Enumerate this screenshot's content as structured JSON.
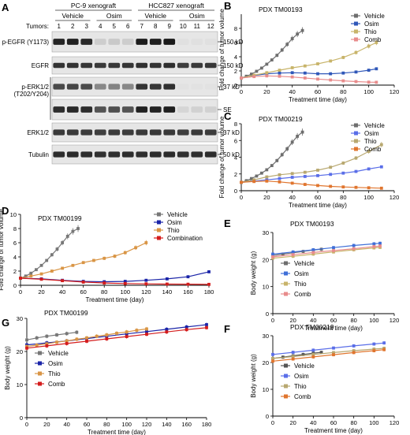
{
  "figure": {
    "blot": {
      "panel_letter": "A",
      "tumors_label": "Tumors:",
      "group_headers": [
        "PC-9 xenograft",
        "HCC827 xenograft"
      ],
      "treatments": [
        "Vehicle",
        "Osim",
        "Vehicle",
        "Osim"
      ],
      "lanes": [
        "1",
        "2",
        "3",
        "4",
        "5",
        "6",
        "7",
        "8",
        "9",
        "10",
        "11",
        "12"
      ],
      "rows": [
        {
          "label": "p-EGFR (Y1173)",
          "kd": "150 kD",
          "lane_intensity": [
            0.92,
            0.94,
            0.9,
            0.12,
            0.14,
            0.12,
            0.96,
            0.95,
            0.97,
            0.03,
            0.03,
            0.03
          ]
        },
        {
          "label": "EGFR",
          "kd": "150 kD",
          "lane_intensity": [
            0.85,
            0.85,
            0.84,
            0.82,
            0.83,
            0.84,
            0.86,
            0.85,
            0.87,
            0.8,
            0.82,
            0.83
          ]
        },
        {
          "label": "p-ERK1/2",
          "kd": "37 kD",
          "lane_intensity": [
            0.75,
            0.76,
            0.74,
            0.45,
            0.47,
            0.45,
            0.85,
            0.84,
            0.86,
            0.02,
            0.02,
            0.02
          ]
        },
        {
          "label": "",
          "kd": "SE",
          "lane_intensity": [
            0.88,
            0.9,
            0.88,
            0.7,
            0.72,
            0.7,
            0.94,
            0.93,
            0.95,
            0.08,
            0.1,
            0.1
          ]
        },
        {
          "label": "ERK1/2",
          "kd": "37 kD",
          "lane_intensity": [
            0.82,
            0.82,
            0.81,
            0.8,
            0.82,
            0.81,
            0.82,
            0.83,
            0.83,
            0.8,
            0.82,
            0.81
          ]
        },
        {
          "label": "Tubulin",
          "kd": "50 kD",
          "lane_intensity": [
            0.88,
            0.89,
            0.88,
            0.86,
            0.87,
            0.88,
            0.87,
            0.88,
            0.89,
            0.86,
            0.87,
            0.88
          ]
        }
      ],
      "side_label": "(T202/Y204)"
    }
  },
  "chart_data": [
    {
      "type": "line",
      "panel": "B",
      "title": "PDX TM00193",
      "xlabel": "Treatment time (day)",
      "ylabel": "Fold change of tumor volume",
      "xlim": [
        0,
        120
      ],
      "ylim": [
        0,
        10
      ],
      "xticks": [
        0,
        20,
        40,
        60,
        80,
        100,
        120
      ],
      "yticks": [
        0,
        2,
        4,
        6,
        8
      ],
      "legend": "top-right",
      "series": [
        {
          "name": "Vehicle",
          "color": "#6e6e6e",
          "x": [
            0,
            4,
            8,
            12,
            16,
            20,
            24,
            28,
            32,
            36,
            40,
            44,
            48
          ],
          "y": [
            1,
            1.25,
            1.55,
            1.95,
            2.4,
            2.95,
            3.55,
            4.2,
            4.95,
            5.75,
            6.55,
            7.2,
            7.7
          ]
        },
        {
          "name": "Osim",
          "color": "#2f57b8",
          "x": [
            0,
            10,
            20,
            30,
            40,
            50,
            60,
            70,
            80,
            90,
            100,
            106
          ],
          "y": [
            1,
            1.35,
            1.6,
            1.7,
            1.75,
            1.7,
            1.6,
            1.6,
            1.7,
            1.85,
            2.1,
            2.3
          ]
        },
        {
          "name": "Thio",
          "color": "#c8b46a",
          "x": [
            0,
            10,
            20,
            30,
            40,
            50,
            60,
            70,
            80,
            90,
            100,
            106
          ],
          "y": [
            1,
            1.4,
            1.75,
            2.1,
            2.45,
            2.7,
            3.0,
            3.4,
            3.9,
            4.6,
            5.5,
            6.0
          ]
        },
        {
          "name": "Comb",
          "color": "#e88c8c",
          "x": [
            0,
            10,
            20,
            30,
            40,
            50,
            60,
            70,
            80,
            90,
            100,
            106
          ],
          "y": [
            1,
            1.2,
            1.3,
            1.25,
            1.15,
            1.0,
            0.85,
            0.72,
            0.6,
            0.5,
            0.42,
            0.4
          ]
        }
      ]
    },
    {
      "type": "line",
      "panel": "C",
      "title": "PDX TM00219",
      "xlabel": "Treatment time (day)",
      "ylabel": "Fold change of tumor volume",
      "xlim": [
        0,
        120
      ],
      "ylim": [
        0,
        8
      ],
      "xticks": [
        0,
        20,
        40,
        60,
        80,
        100,
        120
      ],
      "yticks": [
        0,
        2,
        4,
        6,
        8
      ],
      "legend": "top-right",
      "series": [
        {
          "name": "Vehicle",
          "color": "#6e6e6e",
          "x": [
            0,
            4,
            8,
            12,
            16,
            20,
            24,
            28,
            32,
            36,
            40,
            44,
            48
          ],
          "y": [
            1,
            1.2,
            1.45,
            1.75,
            2.1,
            2.5,
            3.0,
            3.6,
            4.3,
            5.0,
            5.8,
            6.5,
            7.0
          ]
        },
        {
          "name": "Osim",
          "color": "#5a6ee8",
          "x": [
            0,
            10,
            20,
            30,
            40,
            50,
            60,
            70,
            80,
            90,
            100,
            110
          ],
          "y": [
            1,
            1.15,
            1.3,
            1.45,
            1.6,
            1.7,
            1.8,
            1.95,
            2.1,
            2.3,
            2.6,
            2.85
          ]
        },
        {
          "name": "Thio",
          "color": "#b8a870",
          "x": [
            0,
            10,
            20,
            30,
            40,
            50,
            60,
            70,
            80,
            90,
            100,
            110
          ],
          "y": [
            1,
            1.3,
            1.65,
            1.9,
            2.05,
            2.2,
            2.45,
            2.8,
            3.3,
            3.9,
            4.7,
            5.5
          ]
        },
        {
          "name": "Comb",
          "color": "#e0752e",
          "x": [
            0,
            10,
            20,
            30,
            40,
            50,
            60,
            70,
            80,
            90,
            100,
            110
          ],
          "y": [
            1,
            1.1,
            1.15,
            1.05,
            0.9,
            0.75,
            0.62,
            0.52,
            0.45,
            0.4,
            0.35,
            0.3
          ]
        }
      ]
    },
    {
      "type": "line",
      "panel": "D",
      "title": "PDX TM00199",
      "xlabel": "Treatment time (day)",
      "ylabel": "Fold change of tumor volume",
      "xlim": [
        0,
        180
      ],
      "ylim": [
        0,
        10
      ],
      "xticks": [
        0,
        20,
        40,
        60,
        80,
        100,
        120,
        140,
        160,
        180
      ],
      "yticks": [
        0,
        2,
        4,
        6,
        8,
        10
      ],
      "legend": "top-right",
      "series": [
        {
          "name": "Vehicle",
          "color": "#777777",
          "x": [
            0,
            5,
            10,
            15,
            20,
            25,
            30,
            35,
            40,
            45,
            50,
            55
          ],
          "y": [
            1,
            1.3,
            1.7,
            2.2,
            2.8,
            3.5,
            4.3,
            5.1,
            6.0,
            6.9,
            7.6,
            8.0
          ]
        },
        {
          "name": "Osim",
          "color": "#1a24a8",
          "x": [
            0,
            20,
            40,
            60,
            80,
            100,
            120,
            140,
            160,
            180
          ],
          "y": [
            1,
            0.9,
            0.7,
            0.55,
            0.5,
            0.55,
            0.7,
            0.9,
            1.2,
            1.9
          ]
        },
        {
          "name": "Thio",
          "color": "#d99545",
          "x": [
            0,
            10,
            20,
            30,
            40,
            50,
            60,
            70,
            80,
            90,
            100,
            110,
            120
          ],
          "y": [
            1,
            1.3,
            1.6,
            2.0,
            2.4,
            2.8,
            3.2,
            3.5,
            3.8,
            4.1,
            4.6,
            5.3,
            6.0
          ]
        },
        {
          "name": "Combination",
          "color": "#d41c1c",
          "x": [
            0,
            20,
            40,
            60,
            80,
            100,
            120,
            140,
            160,
            180
          ],
          "y": [
            1,
            0.85,
            0.65,
            0.45,
            0.32,
            0.25,
            0.2,
            0.17,
            0.15,
            0.13
          ]
        }
      ]
    },
    {
      "type": "line",
      "panel": "E",
      "title": "PDX TM00193",
      "xlabel": "Treatment time (day)",
      "ylabel": "Body weight (g)",
      "xlim": [
        0,
        120
      ],
      "ylim": [
        0,
        30
      ],
      "xticks": [
        0,
        20,
        40,
        60,
        80,
        100,
        120
      ],
      "yticks": [
        0,
        10,
        20,
        30
      ],
      "legend": "bottom-left",
      "series": [
        {
          "name": "Vehicle",
          "color": "#6e6e6e",
          "x": [
            0,
            10,
            20,
            30,
            40,
            48
          ],
          "y": [
            21.5,
            22,
            22.5,
            23,
            23.5,
            23.8
          ]
        },
        {
          "name": "Osim",
          "color": "#3f6fd8",
          "x": [
            0,
            20,
            40,
            60,
            80,
            100,
            106
          ],
          "y": [
            22.0,
            22.8,
            23.6,
            24.4,
            25.2,
            25.8,
            26.0
          ]
        },
        {
          "name": "Thio",
          "color": "#c8b46a",
          "x": [
            0,
            20,
            40,
            60,
            80,
            100,
            106
          ],
          "y": [
            20.5,
            21.2,
            22.0,
            22.8,
            23.6,
            24.3,
            24.5
          ]
        },
        {
          "name": "Comb",
          "color": "#e88c8c",
          "x": [
            0,
            20,
            40,
            60,
            80,
            100,
            106
          ],
          "y": [
            21.0,
            21.8,
            22.6,
            23.3,
            24.0,
            24.8,
            25.0
          ]
        }
      ]
    },
    {
      "type": "line",
      "panel": "F",
      "title": "PDX TM00219",
      "xlabel": "Treatment time (day)",
      "ylabel": "Body weight (g)",
      "xlim": [
        0,
        120
      ],
      "ylim": [
        0,
        30
      ],
      "xticks": [
        0,
        20,
        40,
        60,
        80,
        100,
        120
      ],
      "yticks": [
        0,
        10,
        20,
        30
      ],
      "legend": "bottom-left",
      "series": [
        {
          "name": "Vehicle",
          "color": "#555555",
          "x": [
            0,
            10,
            20,
            30,
            40,
            48
          ],
          "y": [
            21.5,
            22,
            22.5,
            23,
            23.5,
            23.8
          ]
        },
        {
          "name": "Osim",
          "color": "#5a6ee8",
          "x": [
            0,
            20,
            40,
            60,
            80,
            100,
            110
          ],
          "y": [
            23.0,
            23.8,
            24.6,
            25.4,
            26.2,
            26.9,
            27.3
          ]
        },
        {
          "name": "Thio",
          "color": "#b8a870",
          "x": [
            0,
            20,
            40,
            60,
            80,
            100,
            110
          ],
          "y": [
            21.5,
            22.2,
            23.0,
            23.7,
            24.4,
            25.0,
            25.3
          ]
        },
        {
          "name": "Comb",
          "color": "#e0752e",
          "x": [
            0,
            20,
            40,
            60,
            80,
            100,
            110
          ],
          "y": [
            20.5,
            21.3,
            22.1,
            22.9,
            23.7,
            24.4,
            24.8
          ]
        }
      ]
    },
    {
      "type": "line",
      "panel": "G",
      "title": "PDX TM00199",
      "xlabel": "Treatment time (day)",
      "ylabel": "Body weight (g)",
      "xlim": [
        0,
        180
      ],
      "ylim": [
        0,
        30
      ],
      "xticks": [
        0,
        20,
        40,
        60,
        80,
        100,
        120,
        140,
        160,
        180
      ],
      "yticks": [
        0,
        10,
        20,
        30
      ],
      "legend": "bottom-left",
      "series": [
        {
          "name": "Vehicle",
          "color": "#777777",
          "x": [
            0,
            10,
            20,
            30,
            40,
            50
          ],
          "y": [
            23.5,
            24.1,
            24.6,
            25.0,
            25.4,
            25.8
          ]
        },
        {
          "name": "Osim",
          "color": "#1a24a8",
          "x": [
            0,
            20,
            40,
            60,
            80,
            100,
            120,
            140,
            160,
            180
          ],
          "y": [
            22.0,
            22.6,
            23.2,
            23.9,
            24.6,
            25.3,
            26.0,
            26.7,
            27.4,
            28.1
          ]
        },
        {
          "name": "Thio",
          "color": "#d99545",
          "x": [
            0,
            10,
            20,
            30,
            40,
            50,
            60,
            70,
            80,
            90,
            100,
            110,
            120
          ],
          "y": [
            21.5,
            21.9,
            22.3,
            22.8,
            23.2,
            23.7,
            24.1,
            24.6,
            25.0,
            25.5,
            25.9,
            26.4,
            26.8
          ]
        },
        {
          "name": "Comb",
          "color": "#d41c1c",
          "x": [
            0,
            20,
            40,
            60,
            80,
            100,
            120,
            140,
            160,
            180
          ],
          "y": [
            21.0,
            21.7,
            22.4,
            23.1,
            23.8,
            24.5,
            25.2,
            25.9,
            26.6,
            27.2
          ]
        }
      ]
    }
  ]
}
